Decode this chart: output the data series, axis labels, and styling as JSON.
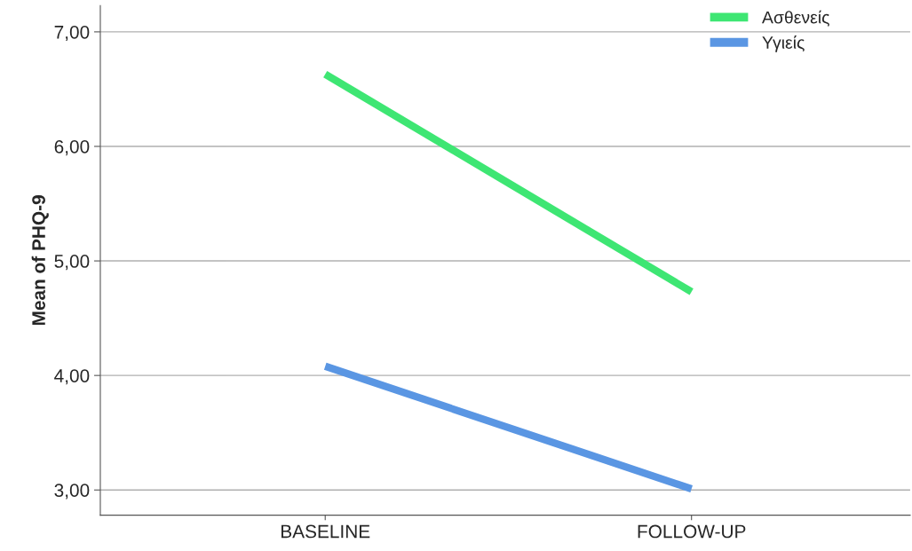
{
  "chart_data": {
    "type": "line",
    "ylabel": "Mean of PHQ-9",
    "categories": [
      "BASELINE",
      "FOLLOW-UP"
    ],
    "series": [
      {
        "name": "Ασθενείς",
        "color": "#3ee673",
        "values": [
          6.63,
          4.73
        ]
      },
      {
        "name": "Υγιείς",
        "color": "#5a96e3",
        "values": [
          4.08,
          3.01
        ]
      }
    ],
    "ylim": [
      2.78,
      7.23
    ],
    "yticks": [
      {
        "value": 3,
        "label": "3,00"
      },
      {
        "value": 4,
        "label": "4,00"
      },
      {
        "value": 5,
        "label": "5,00"
      },
      {
        "value": 6,
        "label": "6,00"
      },
      {
        "value": 7,
        "label": "7,00"
      }
    ],
    "grid": "y",
    "legend": "top right"
  }
}
